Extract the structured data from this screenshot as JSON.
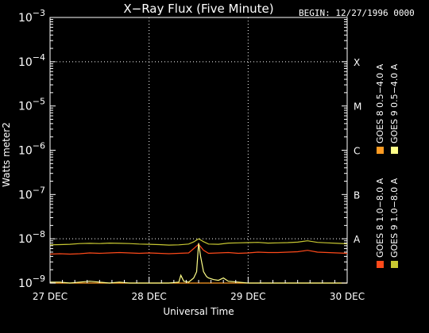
{
  "header": {
    "title": "X−Ray Flux (Five Minute)",
    "begin": "BEGIN: 12/27/1996 0000"
  },
  "colors": {
    "background": "#000000",
    "axes": "#ffffff",
    "grid": "#ffffff",
    "goes8_long": "#ff4a1a",
    "goes8_short": "#ff9b22",
    "goes9_long": "#c8c832",
    "goes9_short": "#ffff88"
  },
  "chart_data": {
    "type": "line",
    "title": "X−Ray Flux (Five Minute)",
    "xlabel": "Universal Time",
    "ylabel": "Watts meter2",
    "yscale": "log",
    "ylim": [
      1e-09,
      0.001
    ],
    "xlim": [
      0,
      3
    ],
    "x_ticks": [
      "27 DEC",
      "28 DEC",
      "29 DEC",
      "30 DEC"
    ],
    "y_ticks": [
      "10−9",
      "10−8",
      "10−7",
      "10−6",
      "10−5",
      "10−4",
      "10−3"
    ],
    "y_exponents": [
      -9,
      -8,
      -7,
      -6,
      -5,
      -4,
      -3
    ],
    "flare_classes": [
      {
        "label": "X",
        "value": 0.0001
      },
      {
        "label": "M",
        "value": 1e-05
      },
      {
        "label": "C",
        "value": 1e-06
      },
      {
        "label": "B",
        "value": 1e-07
      },
      {
        "label": "A",
        "value": 1e-08
      }
    ],
    "grid": "dotted vertical at day boundaries, dotted horizontal at 1e-8 and 1e-4",
    "legend_position": "right, rotated",
    "series": [
      {
        "name": "GOES 8 1.0−8.0 A",
        "color": "#ff4a1a",
        "x": [
          0,
          0.1,
          0.2,
          0.3,
          0.4,
          0.5,
          0.6,
          0.7,
          0.8,
          0.9,
          1.0,
          1.1,
          1.2,
          1.3,
          1.4,
          1.45,
          1.5,
          1.55,
          1.6,
          1.7,
          1.8,
          1.9,
          2.0,
          2.1,
          2.2,
          2.3,
          2.4,
          2.5,
          2.6,
          2.7,
          2.8,
          2.9,
          3.0
        ],
        "values": [
          4.5e-09,
          4.6e-09,
          4.5e-09,
          4.6e-09,
          4.8e-09,
          4.7e-09,
          4.8e-09,
          4.9e-09,
          4.8e-09,
          4.7e-09,
          4.8e-09,
          4.7e-09,
          4.6e-09,
          4.7e-09,
          4.8e-09,
          6e-09,
          7.5e-09,
          5.5e-09,
          4.7e-09,
          4.8e-09,
          4.9e-09,
          4.7e-09,
          4.8e-09,
          5e-09,
          4.9e-09,
          4.9e-09,
          5e-09,
          5.1e-09,
          5.5e-09,
          5e-09,
          4.9e-09,
          4.8e-09,
          4.7e-09
        ]
      },
      {
        "name": "GOES 8 0.5−4.0 A",
        "color": "#ff9b22",
        "x": [
          0,
          0.5,
          1.0,
          1.2,
          1.25,
          1.3,
          1.35,
          1.4,
          1.5,
          2.0,
          2.5,
          3.0
        ],
        "values": [
          1e-09,
          1e-09,
          1e-09,
          1e-09,
          1e-09,
          1e-09,
          1e-09,
          1e-09,
          1e-09,
          1e-09,
          1e-09,
          1e-09
        ]
      },
      {
        "name": "GOES 9 1.0−8.0 A",
        "color": "#c8c832",
        "x": [
          0,
          0.1,
          0.2,
          0.3,
          0.4,
          0.5,
          0.6,
          0.7,
          0.8,
          0.9,
          1.0,
          1.1,
          1.2,
          1.3,
          1.4,
          1.45,
          1.5,
          1.55,
          1.6,
          1.7,
          1.8,
          1.9,
          2.0,
          2.1,
          2.2,
          2.3,
          2.4,
          2.5,
          2.6,
          2.7,
          2.8,
          2.9,
          3.0
        ],
        "values": [
          7.3e-09,
          7.4e-09,
          7.5e-09,
          7.8e-09,
          7.9e-09,
          7.8e-09,
          8e-09,
          7.9e-09,
          7.8e-09,
          7.6e-09,
          7.5e-09,
          7.4e-09,
          7.2e-09,
          7.3e-09,
          7.6e-09,
          8.5e-09,
          1e-08,
          8.6e-09,
          7.6e-09,
          7.5e-09,
          8e-09,
          8.1e-09,
          8.2e-09,
          8.3e-09,
          8e-09,
          8.1e-09,
          8.2e-09,
          8.4e-09,
          9e-09,
          8.3e-09,
          8.1e-09,
          7.9e-09,
          7.7e-09
        ]
      },
      {
        "name": "GOES 9 0.5−4.0 A",
        "color": "#ffff88",
        "x": [
          0,
          0.1,
          0.2,
          0.3,
          0.4,
          0.5,
          0.6,
          0.7,
          0.8,
          0.9,
          1.0,
          1.1,
          1.2,
          1.3,
          1.32,
          1.35,
          1.4,
          1.45,
          1.48,
          1.5,
          1.52,
          1.55,
          1.58,
          1.6,
          1.65,
          1.7,
          1.75,
          1.8,
          1.9,
          2.0,
          2.1,
          2.2,
          2.3,
          2.4,
          2.5,
          2.6,
          2.7,
          2.8,
          2.9,
          3.0
        ],
        "values": [
          1.05e-09,
          1.05e-09,
          1e-09,
          1.05e-09,
          1.1e-09,
          1.05e-09,
          1e-09,
          1.05e-09,
          1e-09,
          1e-09,
          1e-09,
          1e-09,
          1e-09,
          1.05e-09,
          1.5e-09,
          1.1e-09,
          1.05e-09,
          1.3e-09,
          1.8e-09,
          8e-09,
          4e-09,
          1.8e-09,
          1.4e-09,
          1.3e-09,
          1.2e-09,
          1.15e-09,
          1.3e-09,
          1.1e-09,
          1.05e-09,
          1e-09,
          1e-09,
          1e-09,
          1e-09,
          1e-09,
          1e-09,
          1e-09,
          1e-09,
          1e-09,
          1e-09,
          1e-09
        ]
      }
    ]
  }
}
